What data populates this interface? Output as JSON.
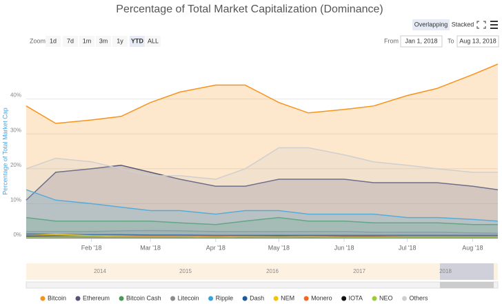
{
  "chart_data": {
    "type": "area",
    "title": "Percentage of Total Market Capitalization (Dominance)",
    "zoom_label": "Zoom",
    "zoom_buttons": [
      "1d",
      "7d",
      "1m",
      "3m",
      "1y",
      "YTD",
      "ALL"
    ],
    "zoom_selected": "YTD",
    "from_label": "From",
    "from": "Jan 1, 2018",
    "to_label": "To",
    "to": "Aug 13, 2018",
    "modes": [
      "Overlapping",
      "Stacked"
    ],
    "mode_selected": "Overlapping",
    "y_label": "Percentage of Total Market Cap",
    "x": [
      "2018-01-01",
      "2018-01-15",
      "2018-02-01",
      "2018-02-15",
      "2018-03-01",
      "2018-03-15",
      "2018-04-01",
      "2018-04-15",
      "2018-05-01",
      "2018-05-15",
      "2018-06-01",
      "2018-06-15",
      "2018-07-01",
      "2018-07-15",
      "2018-08-01",
      "2018-08-13"
    ],
    "xlim": [
      "2018-01-01",
      "2018-08-13"
    ],
    "xticks": [
      {
        "value": "2018-02-01",
        "label": "Feb '18"
      },
      {
        "value": "2018-03-01",
        "label": "Mar '18"
      },
      {
        "value": "2018-04-01",
        "label": "Apr '18"
      },
      {
        "value": "2018-05-01",
        "label": "May '18"
      },
      {
        "value": "2018-06-01",
        "label": "Jun '18"
      },
      {
        "value": "2018-07-01",
        "label": "Jul '18"
      },
      {
        "value": "2018-08-01",
        "label": "Aug '18"
      }
    ],
    "ylim": [
      0,
      50
    ],
    "yticks": [
      {
        "value": 0,
        "label": "0%"
      },
      {
        "value": 10,
        "label": "10%"
      },
      {
        "value": 20,
        "label": "20%"
      },
      {
        "value": 30,
        "label": "30%"
      },
      {
        "value": 40,
        "label": "40%"
      }
    ],
    "grid": true,
    "series": [
      {
        "name": "Bitcoin",
        "color": "#f7931a",
        "values": [
          38,
          33,
          34,
          35,
          39,
          42,
          44,
          44,
          39,
          36,
          37,
          38,
          41,
          43,
          47,
          50
        ]
      },
      {
        "name": "Ethereum",
        "color": "#545479",
        "values": [
          11,
          19,
          20,
          21,
          19,
          17,
          15,
          15,
          17,
          17,
          17,
          16,
          16,
          16,
          15,
          14
        ]
      },
      {
        "name": "Bitcoin Cash",
        "color": "#4a9a55",
        "values": [
          6,
          5,
          5,
          5,
          5,
          4.5,
          4,
          5,
          6,
          5,
          5,
          4.5,
          4.5,
          4.5,
          4,
          4
        ]
      },
      {
        "name": "Litecoin",
        "color": "#8c8c8c",
        "values": [
          2,
          2,
          2,
          2.2,
          2.3,
          2.2,
          2,
          2,
          2,
          2,
          2,
          1.8,
          1.8,
          1.8,
          1.6,
          1.5
        ]
      },
      {
        "name": "Ripple",
        "color": "#35a3dc",
        "values": [
          14,
          11,
          10,
          9,
          8,
          8,
          7,
          8,
          8,
          7,
          7,
          7,
          6,
          6,
          5.5,
          5
        ]
      },
      {
        "name": "Dash",
        "color": "#1c5a9c",
        "values": [
          1.3,
          1.2,
          1.1,
          1.1,
          1,
          1,
          0.9,
          0.9,
          0.9,
          0.9,
          0.9,
          0.9,
          0.9,
          0.9,
          0.9,
          0.9
        ]
      },
      {
        "name": "NEM",
        "color": "#f3c200",
        "values": [
          0.8,
          1.2,
          0.8,
          0.7,
          0.6,
          0.5,
          0.5,
          0.5,
          0.6,
          0.5,
          0.5,
          0.4,
          0.4,
          0.4,
          0.4,
          0.4
        ]
      },
      {
        "name": "Monero",
        "color": "#f26822",
        "values": [
          0.6,
          0.6,
          0.6,
          0.6,
          0.7,
          0.6,
          0.6,
          0.6,
          0.6,
          0.6,
          0.6,
          0.6,
          0.5,
          0.5,
          0.5,
          0.5
        ]
      },
      {
        "name": "IOTA",
        "color": "#111111",
        "values": [
          0.7,
          0.7,
          0.6,
          0.5,
          0.5,
          0.5,
          0.4,
          0.5,
          0.6,
          0.5,
          0.5,
          0.5,
          0.4,
          0.4,
          0.4,
          0.4
        ]
      },
      {
        "name": "NEO",
        "color": "#9acd32",
        "values": [
          0.4,
          0.5,
          0.6,
          0.5,
          0.5,
          0.5,
          0.4,
          0.5,
          0.5,
          0.5,
          0.4,
          0.4,
          0.4,
          0.4,
          0.4,
          0.4
        ]
      },
      {
        "name": "Others",
        "color": "#cfcfcf",
        "values": [
          20,
          23,
          22,
          20,
          18,
          18,
          17,
          20,
          26,
          26,
          24,
          22,
          21,
          20,
          19,
          19
        ]
      }
    ],
    "navigator_labels": [
      "2014",
      "2015",
      "2016",
      "2017",
      "2018"
    ]
  }
}
